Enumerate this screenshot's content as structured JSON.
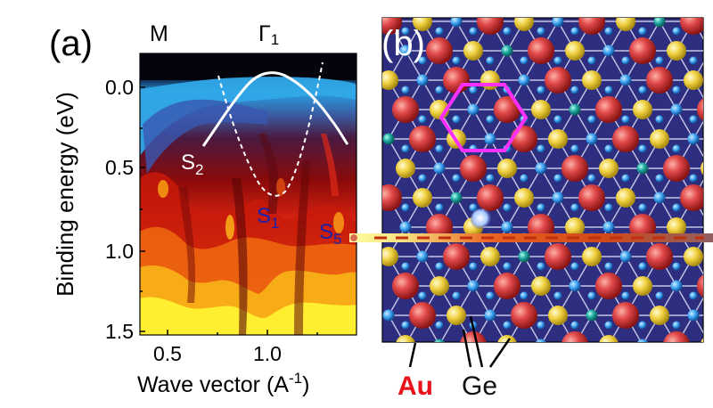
{
  "panel_a": {
    "label": "(a)",
    "top_labels": {
      "left": "M",
      "center": "Γ",
      "center_sub": "1"
    },
    "ylabel": "Binding energy (eV)",
    "xlabel_main": "Wave vector (A",
    "xlabel_sup": "-1",
    "xlabel_close": ")",
    "xticks": [
      "0.5",
      "1.0"
    ],
    "yticks": [
      "0.0",
      "0.5",
      "1.0",
      "1.5"
    ],
    "bands": [
      {
        "label": "S",
        "sub": "2",
        "color": "#ffffff"
      },
      {
        "label": "S",
        "sub": "1",
        "color": "#1a22aa"
      },
      {
        "label": "S",
        "sub": "5",
        "color": "#1a22aa"
      }
    ]
  },
  "panel_b": {
    "label": "(b)",
    "legend": [
      {
        "text": "Au",
        "color": "#e8141c"
      },
      {
        "text": "Ge",
        "color": "#111111"
      }
    ],
    "colors": {
      "background": "#2e2e80",
      "au": "#e04040",
      "ge_yellow": "#f0d040",
      "ge_teal": "#20a0a0",
      "small": "#3aa0f0",
      "hexagon": "#ff30ff"
    }
  }
}
